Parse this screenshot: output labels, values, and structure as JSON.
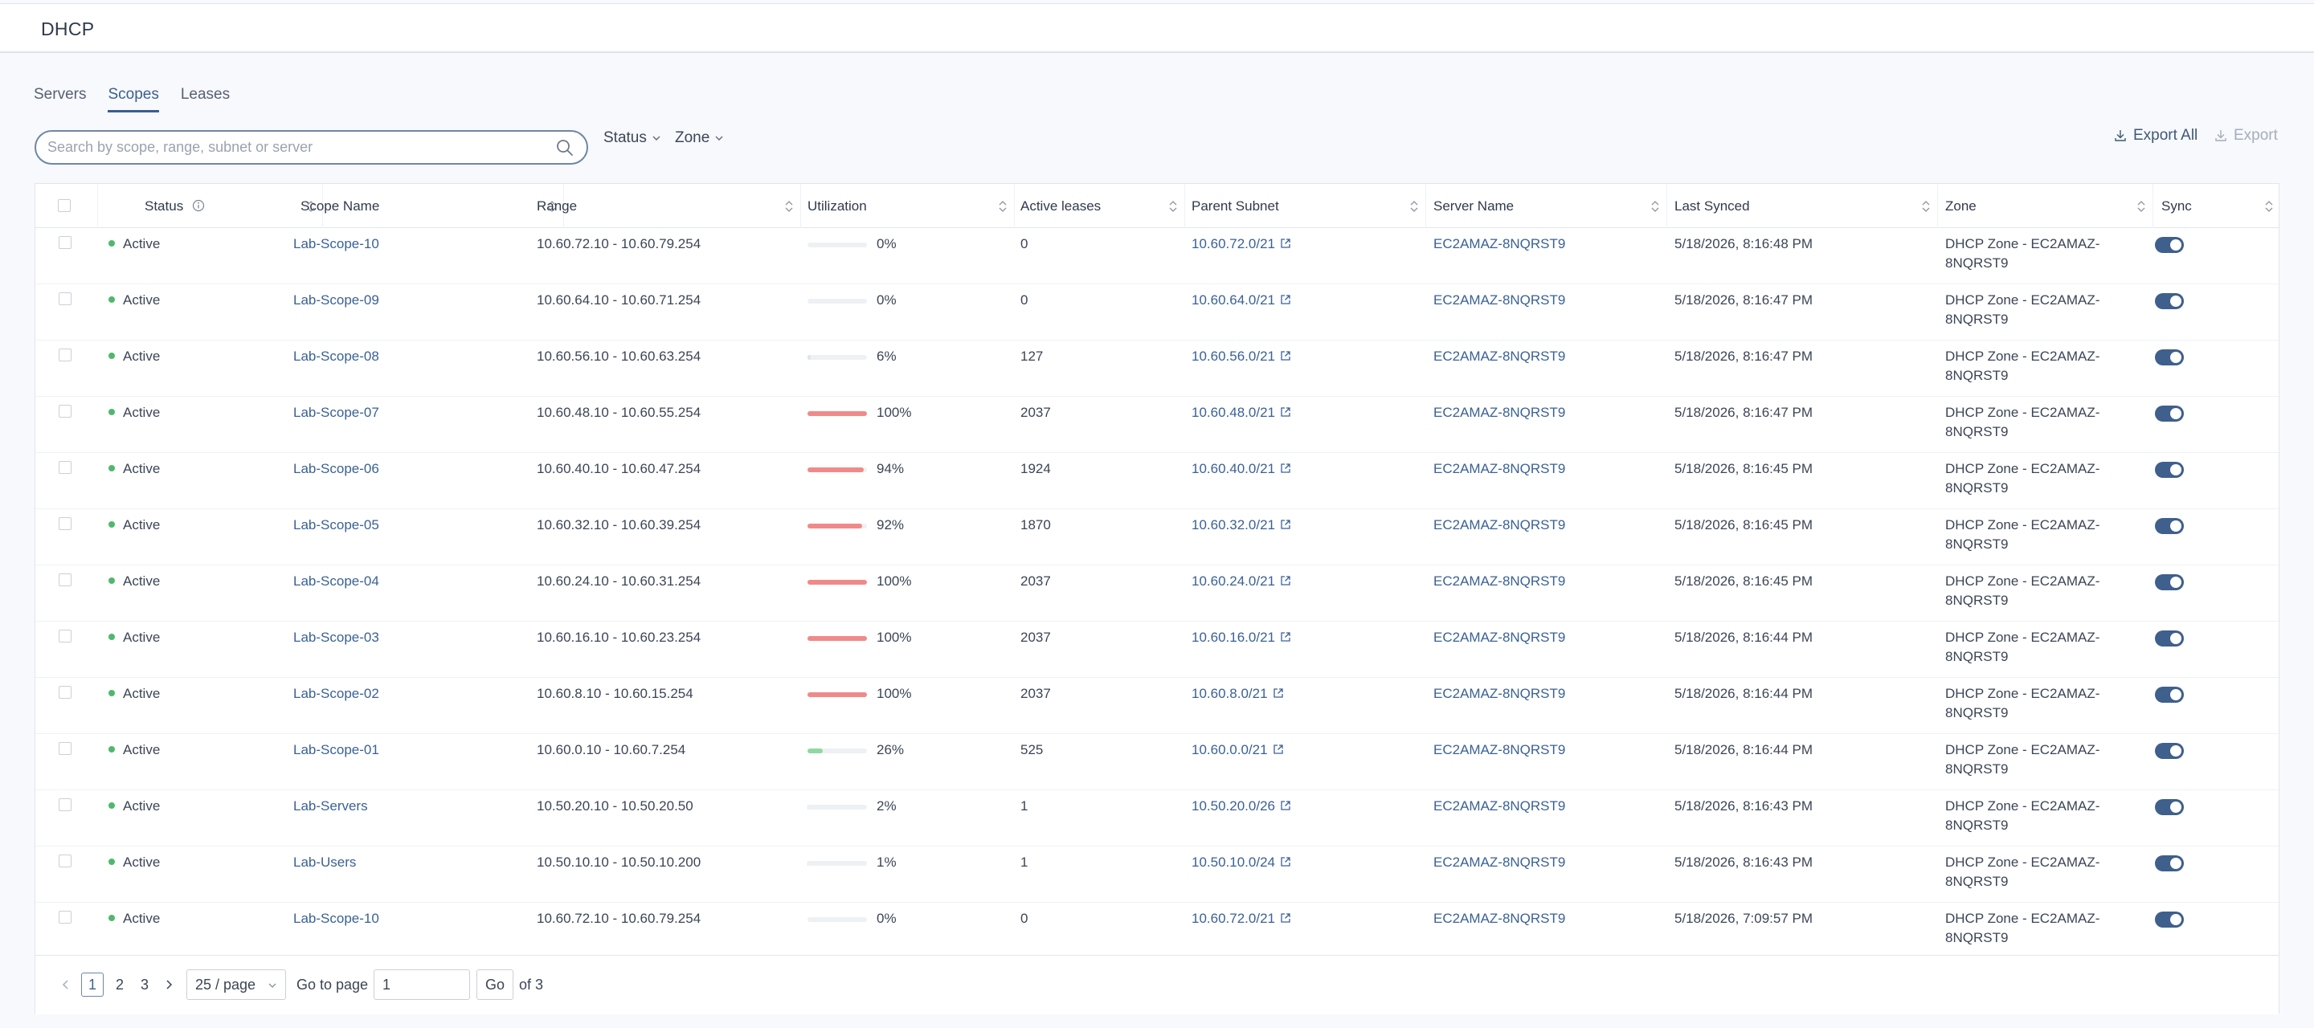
{
  "header": {
    "title": "DHCP"
  },
  "tabs": [
    {
      "label": "Servers"
    },
    {
      "label": "Scopes"
    },
    {
      "label": "Leases"
    }
  ],
  "toolbar": {
    "search_placeholder": "Search by scope, range, subnet or server",
    "search_value": "",
    "status_filter": "Status",
    "zone_filter": "Zone",
    "export_all": "Export All",
    "export": "Export"
  },
  "colors": {
    "accent": "#3b5f8f",
    "active_dot": "#4fb86c",
    "util_high": "#f08a8a",
    "util_low": "#8fd89f"
  },
  "table": {
    "columns": {
      "status": "Status",
      "scope_name": "Scope Name",
      "range": "Range",
      "utilization": "Utilization",
      "active_leases": "Active leases",
      "parent_subnet": "Parent Subnet",
      "server_name": "Server Name",
      "last_synced": "Last Synced",
      "zone": "Zone",
      "sync": "Sync"
    },
    "rows": [
      {
        "status": "Active",
        "scope": "Lab-Scope-10",
        "range": "10.60.72.10 - 10.60.79.254",
        "util": 0,
        "util_text": "0%",
        "leases": "0",
        "subnet": "10.60.72.0/21",
        "server": "EC2AMAZ-8NQRST9",
        "synced": "5/18/2026, 8:16:48 PM",
        "zone1": "DHCP Zone - EC2AMAZ-",
        "zone2": "8NQRST9",
        "sync": true
      },
      {
        "status": "Active",
        "scope": "Lab-Scope-09",
        "range": "10.60.64.10 - 10.60.71.254",
        "util": 0,
        "util_text": "0%",
        "leases": "0",
        "subnet": "10.60.64.0/21",
        "server": "EC2AMAZ-8NQRST9",
        "synced": "5/18/2026, 8:16:47 PM",
        "zone1": "DHCP Zone - EC2AMAZ-",
        "zone2": "8NQRST9",
        "sync": true
      },
      {
        "status": "Active",
        "scope": "Lab-Scope-08",
        "range": "10.60.56.10 - 10.60.63.254",
        "util": 6,
        "util_text": "6%",
        "leases": "127",
        "subnet": "10.60.56.0/21",
        "server": "EC2AMAZ-8NQRST9",
        "synced": "5/18/2026, 8:16:47 PM",
        "zone1": "DHCP Zone - EC2AMAZ-",
        "zone2": "8NQRST9",
        "sync": true
      },
      {
        "status": "Active",
        "scope": "Lab-Scope-07",
        "range": "10.60.48.10 - 10.60.55.254",
        "util": 100,
        "util_text": "100%",
        "leases": "2037",
        "subnet": "10.60.48.0/21",
        "server": "EC2AMAZ-8NQRST9",
        "synced": "5/18/2026, 8:16:47 PM",
        "zone1": "DHCP Zone - EC2AMAZ-",
        "zone2": "8NQRST9",
        "sync": true
      },
      {
        "status": "Active",
        "scope": "Lab-Scope-06",
        "range": "10.60.40.10 - 10.60.47.254",
        "util": 94,
        "util_text": "94%",
        "leases": "1924",
        "subnet": "10.60.40.0/21",
        "server": "EC2AMAZ-8NQRST9",
        "synced": "5/18/2026, 8:16:45 PM",
        "zone1": "DHCP Zone - EC2AMAZ-",
        "zone2": "8NQRST9",
        "sync": true
      },
      {
        "status": "Active",
        "scope": "Lab-Scope-05",
        "range": "10.60.32.10 - 10.60.39.254",
        "util": 92,
        "util_text": "92%",
        "leases": "1870",
        "subnet": "10.60.32.0/21",
        "server": "EC2AMAZ-8NQRST9",
        "synced": "5/18/2026, 8:16:45 PM",
        "zone1": "DHCP Zone - EC2AMAZ-",
        "zone2": "8NQRST9",
        "sync": true
      },
      {
        "status": "Active",
        "scope": "Lab-Scope-04",
        "range": "10.60.24.10 - 10.60.31.254",
        "util": 100,
        "util_text": "100%",
        "leases": "2037",
        "subnet": "10.60.24.0/21",
        "server": "EC2AMAZ-8NQRST9",
        "synced": "5/18/2026, 8:16:45 PM",
        "zone1": "DHCP Zone - EC2AMAZ-",
        "zone2": "8NQRST9",
        "sync": true
      },
      {
        "status": "Active",
        "scope": "Lab-Scope-03",
        "range": "10.60.16.10 - 10.60.23.254",
        "util": 100,
        "util_text": "100%",
        "leases": "2037",
        "subnet": "10.60.16.0/21",
        "server": "EC2AMAZ-8NQRST9",
        "synced": "5/18/2026, 8:16:44 PM",
        "zone1": "DHCP Zone - EC2AMAZ-",
        "zone2": "8NQRST9",
        "sync": true
      },
      {
        "status": "Active",
        "scope": "Lab-Scope-02",
        "range": "10.60.8.10 - 10.60.15.254",
        "util": 100,
        "util_text": "100%",
        "leases": "2037",
        "subnet": "10.60.8.0/21",
        "server": "EC2AMAZ-8NQRST9",
        "synced": "5/18/2026, 8:16:44 PM",
        "zone1": "DHCP Zone - EC2AMAZ-",
        "zone2": "8NQRST9",
        "sync": true
      },
      {
        "status": "Active",
        "scope": "Lab-Scope-01",
        "range": "10.60.0.10 - 10.60.7.254",
        "util": 26,
        "util_text": "26%",
        "leases": "525",
        "subnet": "10.60.0.0/21",
        "server": "EC2AMAZ-8NQRST9",
        "synced": "5/18/2026, 8:16:44 PM",
        "zone1": "DHCP Zone - EC2AMAZ-",
        "zone2": "8NQRST9",
        "sync": true
      },
      {
        "status": "Active",
        "scope": "Lab-Servers",
        "range": "10.50.20.10 - 10.50.20.50",
        "util": 2,
        "util_text": "2%",
        "leases": "1",
        "subnet": "10.50.20.0/26",
        "server": "EC2AMAZ-8NQRST9",
        "synced": "5/18/2026, 8:16:43 PM",
        "zone1": "DHCP Zone - EC2AMAZ-",
        "zone2": "8NQRST9",
        "sync": true
      },
      {
        "status": "Active",
        "scope": "Lab-Users",
        "range": "10.50.10.10 - 10.50.10.200",
        "util": 1,
        "util_text": "1%",
        "leases": "1",
        "subnet": "10.50.10.0/24",
        "server": "EC2AMAZ-8NQRST9",
        "synced": "5/18/2026, 8:16:43 PM",
        "zone1": "DHCP Zone - EC2AMAZ-",
        "zone2": "8NQRST9",
        "sync": true
      },
      {
        "status": "Active",
        "scope": "Lab-Scope-10",
        "range": "10.60.72.10 - 10.60.79.254",
        "util": 0,
        "util_text": "0%",
        "leases": "0",
        "subnet": "10.60.72.0/21",
        "server": "EC2AMAZ-8NQRST9",
        "synced": "5/18/2026, 7:09:57 PM",
        "zone1": "DHCP Zone - EC2AMAZ-",
        "zone2": "8NQRST9",
        "sync": true
      }
    ]
  },
  "pagination": {
    "pages": [
      "1",
      "2",
      "3"
    ],
    "current": "1",
    "page_size": "25 / page",
    "goto_label": "Go to page",
    "goto_value": "1",
    "go_button": "Go",
    "of_total": "of 3"
  }
}
